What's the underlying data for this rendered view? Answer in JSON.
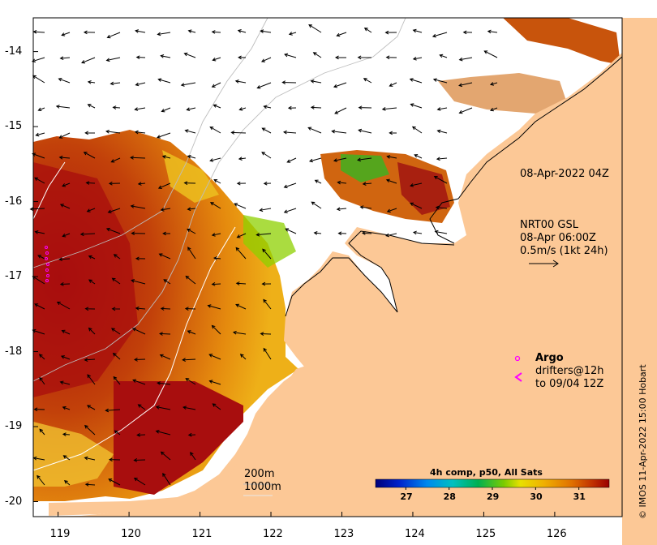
{
  "map": {
    "x_ticks": [
      "119",
      "120",
      "121",
      "122",
      "123",
      "124",
      "125",
      "126"
    ],
    "y_ticks": [
      "-14",
      "-15",
      "-16",
      "-17",
      "-18",
      "-19",
      "-20"
    ],
    "x_range": [
      118.65,
      126.95
    ],
    "y_range": [
      -20.2,
      -13.55
    ]
  },
  "image_time": "08-Apr-2022 04Z",
  "currents": {
    "line1": "NRT00 GSL",
    "line2": "08-Apr 06:00Z",
    "line3": "0.5m/s (1kt 24h)"
  },
  "argo": {
    "label": "Argo",
    "color": "#ff00ff"
  },
  "drifters": {
    "line1": "drifters@12h",
    "line2": "to 09/04 12Z"
  },
  "isobaths": {
    "shallow": "200m",
    "deep": "1000m"
  },
  "colorbar": {
    "title": "4h comp, p50, All Sats",
    "ticks": [
      "27",
      "28",
      "29",
      "30",
      "31"
    ],
    "range": [
      26.3,
      31.7
    ]
  },
  "credit": "© IMOS 11-Apr-2022 15:00 Hobart",
  "colors": {
    "land": "#fcc896",
    "sst_hot": "#a80e0e",
    "sst_warm": "#e58a0e"
  }
}
